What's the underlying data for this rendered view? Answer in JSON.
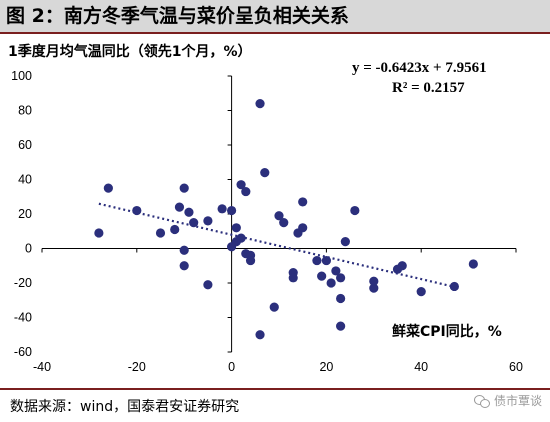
{
  "figure": {
    "title": "图 2：南方冬季气温与菜价呈负相关关系",
    "source": "数据来源：wind，国泰君安证券研究",
    "watermark": "债市覃谈"
  },
  "chart_data": {
    "type": "scatter",
    "title": "",
    "ylabel": "1季度月均气温同比（领先1个月，%）",
    "xlabel": "鲜菜CPI同比，%",
    "xlim": [
      -40,
      60
    ],
    "ylim": [
      -60,
      100
    ],
    "xticks": [
      -40,
      -20,
      0,
      20,
      40,
      60
    ],
    "yticks": [
      -60,
      -40,
      -20,
      0,
      20,
      40,
      60,
      80,
      100
    ],
    "grid": false,
    "legend": "none",
    "marker_color": "#2b2f7c",
    "trend_color": "#2b2f7c",
    "trendline": {
      "equation": "y = -0.6423x + 7.9561",
      "r_squared": "R² = 0.2157",
      "slope": -0.6423,
      "intercept": 7.9561,
      "x_range": [
        -28,
        47
      ]
    },
    "points": [
      {
        "x": -28,
        "y": 9
      },
      {
        "x": -26,
        "y": 35
      },
      {
        "x": -20,
        "y": 22
      },
      {
        "x": -15,
        "y": 9
      },
      {
        "x": -12,
        "y": 11
      },
      {
        "x": -11,
        "y": 24
      },
      {
        "x": -10,
        "y": 35
      },
      {
        "x": -10,
        "y": -1
      },
      {
        "x": -10,
        "y": -10
      },
      {
        "x": -9,
        "y": 21
      },
      {
        "x": -8,
        "y": 15
      },
      {
        "x": -5,
        "y": -21
      },
      {
        "x": -5,
        "y": 16
      },
      {
        "x": -2,
        "y": 23
      },
      {
        "x": 0,
        "y": 22
      },
      {
        "x": 0,
        "y": 1
      },
      {
        "x": 1,
        "y": 4
      },
      {
        "x": 1,
        "y": 12
      },
      {
        "x": 2,
        "y": 6
      },
      {
        "x": 2,
        "y": 37
      },
      {
        "x": 3,
        "y": 33
      },
      {
        "x": 3,
        "y": -3
      },
      {
        "x": 4,
        "y": -4
      },
      {
        "x": 4,
        "y": -7
      },
      {
        "x": 6,
        "y": 84
      },
      {
        "x": 6,
        "y": -50
      },
      {
        "x": 7,
        "y": 44
      },
      {
        "x": 9,
        "y": -34
      },
      {
        "x": 10,
        "y": 19
      },
      {
        "x": 11,
        "y": 15
      },
      {
        "x": 13,
        "y": -14
      },
      {
        "x": 13,
        "y": -17
      },
      {
        "x": 14,
        "y": 9
      },
      {
        "x": 15,
        "y": 27
      },
      {
        "x": 15,
        "y": 12
      },
      {
        "x": 18,
        "y": -7
      },
      {
        "x": 19,
        "y": -16
      },
      {
        "x": 20,
        "y": -7
      },
      {
        "x": 21,
        "y": -20
      },
      {
        "x": 22,
        "y": -13
      },
      {
        "x": 23,
        "y": -17
      },
      {
        "x": 23,
        "y": -29
      },
      {
        "x": 23,
        "y": -45
      },
      {
        "x": 24,
        "y": 4
      },
      {
        "x": 26,
        "y": 22
      },
      {
        "x": 30,
        "y": -23
      },
      {
        "x": 30,
        "y": -19
      },
      {
        "x": 35,
        "y": -12
      },
      {
        "x": 36,
        "y": -10
      },
      {
        "x": 40,
        "y": -25
      },
      {
        "x": 47,
        "y": -22
      },
      {
        "x": 51,
        "y": -9
      }
    ]
  }
}
